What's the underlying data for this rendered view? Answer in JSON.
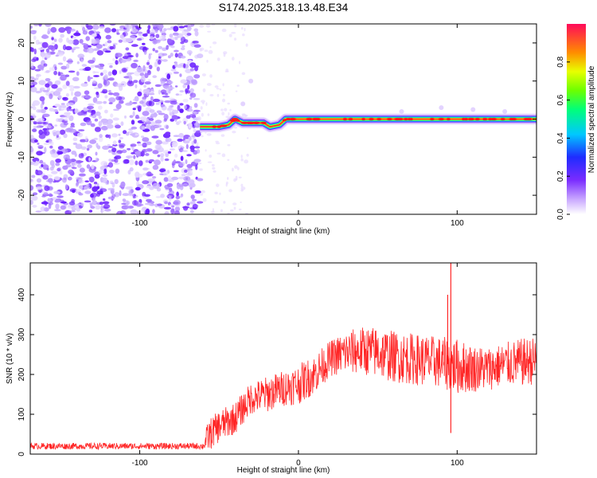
{
  "title": "S174.2025.318.13.48.E34",
  "chart_data": [
    {
      "type": "heatmap",
      "xlabel": "Height of straight line (km)",
      "ylabel": "Frequency (Hz)",
      "xlim": [
        -169,
        150
      ],
      "ylim": [
        -25,
        25
      ],
      "xticks": [
        -100,
        0,
        100
      ],
      "yticks": [
        -20,
        -10,
        0,
        10,
        20
      ],
      "noise_region": [
        -169,
        -62
      ],
      "signal_trace": {
        "x": [
          -62,
          -50,
          -44,
          -40,
          -35,
          -30,
          -22,
          -18,
          -12,
          -8,
          0,
          20,
          40,
          60,
          80,
          100,
          120,
          140,
          150
        ],
        "freq": [
          -2,
          -2,
          -1.5,
          0,
          -1,
          -1,
          -1,
          -2,
          -1.5,
          0,
          0,
          0,
          0,
          0,
          0,
          0,
          0,
          0,
          0
        ]
      },
      "colorbar": {
        "label": "Normalized spectral amplitude",
        "ticks": [
          0.0,
          0.2,
          0.4,
          0.6,
          0.8
        ],
        "range": [
          0,
          1
        ]
      }
    },
    {
      "type": "line",
      "xlabel": "Height of straight line (km)",
      "ylabel": "SNR (10 * v/v)",
      "xlim": [
        -169,
        150
      ],
      "ylim": [
        0,
        480
      ],
      "xticks": [
        -100,
        0,
        100
      ],
      "yticks": [
        0,
        100,
        200,
        300,
        400
      ],
      "color": "#ff0000",
      "envelope": {
        "x": [
          -169,
          -60,
          -57,
          -50,
          -40,
          -30,
          -20,
          -10,
          0,
          10,
          20,
          30,
          40,
          50,
          60,
          70,
          80,
          90,
          100,
          110,
          120,
          130,
          140,
          150
        ],
        "mean": [
          20,
          20,
          45,
          70,
          90,
          140,
          150,
          165,
          175,
          200,
          240,
          255,
          260,
          255,
          245,
          240,
          235,
          230,
          220,
          215,
          215,
          225,
          230,
          235
        ],
        "spread": [
          8,
          8,
          40,
          40,
          40,
          40,
          45,
          45,
          50,
          50,
          45,
          55,
          60,
          65,
          65,
          65,
          65,
          65,
          70,
          60,
          55,
          55,
          60,
          60
        ]
      },
      "spikes": [
        {
          "x": 96,
          "y": 480
        },
        {
          "x": 96,
          "y": 53
        },
        {
          "x": 94,
          "y": 400
        }
      ]
    }
  ]
}
